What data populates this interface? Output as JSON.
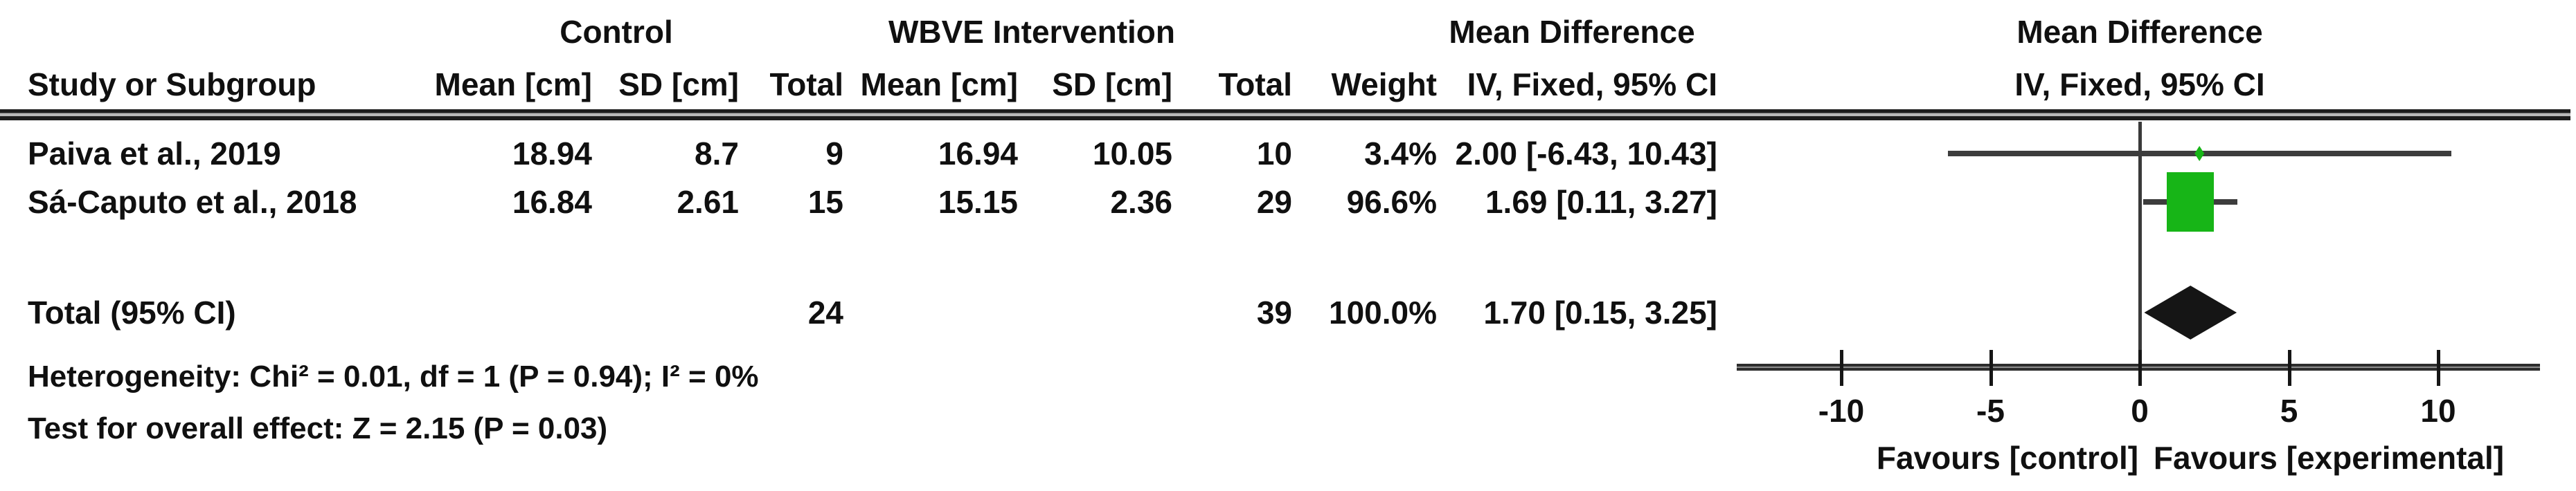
{
  "table": {
    "group_headers": {
      "control": "Control",
      "intervention": "WBVE Intervention",
      "mean_difference": "Mean Difference"
    },
    "column_headers": {
      "study": "Study or Subgroup",
      "mean": "Mean [cm]",
      "sd": "SD [cm]",
      "total": "Total",
      "weight": "Weight",
      "ci": "IV, Fixed, 95% CI"
    },
    "rows": [
      {
        "study": "Paiva et al., 2019",
        "mean1": "18.94",
        "sd1": "8.7",
        "total1": "9",
        "mean2": "16.94",
        "sd2": "10.05",
        "total2": "10",
        "weight": "3.4%",
        "ci": "2.00 [-6.43, 10.43]"
      },
      {
        "study": "Sá-Caputo et al., 2018",
        "mean1": "16.84",
        "sd1": "2.61",
        "total1": "15",
        "mean2": "15.15",
        "sd2": "2.36",
        "total2": "29",
        "weight": "96.6%",
        "ci": "1.69 [0.11, 3.27]"
      }
    ],
    "total_row": {
      "label": "Total (95% CI)",
      "total1": "24",
      "total2": "39",
      "weight": "100.0%",
      "ci": "1.70 [0.15, 3.25]"
    },
    "footnotes": {
      "heterogeneity": "Heterogeneity: Chi² = 0.01, df = 1 (P = 0.94); I² = 0%",
      "overall_effect": "Test for overall effect: Z = 2.15 (P = 0.03)"
    }
  },
  "plot": {
    "header_line1": "Mean Difference",
    "header_line2": "IV, Fixed, 95% CI",
    "favours_left": "Favours [control]",
    "favours_right": "Favours [experimental]"
  },
  "chart_data": {
    "type": "forest",
    "effect_measure": "Mean Difference IV, Fixed, 95% CI",
    "units": "cm",
    "x_ticks": [
      -10,
      -5,
      0,
      5,
      10
    ],
    "xlim_line": [
      -13.5,
      13.4
    ],
    "studies": [
      {
        "name": "Paiva et al., 2019",
        "md": 2.0,
        "ci_low": -6.43,
        "ci_high": 10.43,
        "weight_pct": 3.4,
        "control": {
          "mean": 18.94,
          "sd": 8.7,
          "n": 9
        },
        "intervention": {
          "mean": 16.94,
          "sd": 10.05,
          "n": 10
        }
      },
      {
        "name": "Sá-Caputo et al., 2018",
        "md": 1.69,
        "ci_low": 0.11,
        "ci_high": 3.27,
        "weight_pct": 96.6,
        "control": {
          "mean": 16.84,
          "sd": 2.61,
          "n": 15
        },
        "intervention": {
          "mean": 15.15,
          "sd": 2.36,
          "n": 29
        }
      }
    ],
    "total": {
      "md": 1.7,
      "ci_low": 0.15,
      "ci_high": 3.25,
      "weight_pct": 100.0,
      "n_control": 24,
      "n_intervention": 39
    },
    "heterogeneity": {
      "chi2": 0.01,
      "df": 1,
      "p": 0.94,
      "i2_pct": 0
    },
    "overall_effect": {
      "z": 2.15,
      "p": 0.03
    },
    "colors": {
      "marker_green": "#17b517",
      "diamond_black": "#151515",
      "line_gray": "#3d3d3d",
      "text": "#101010"
    }
  }
}
